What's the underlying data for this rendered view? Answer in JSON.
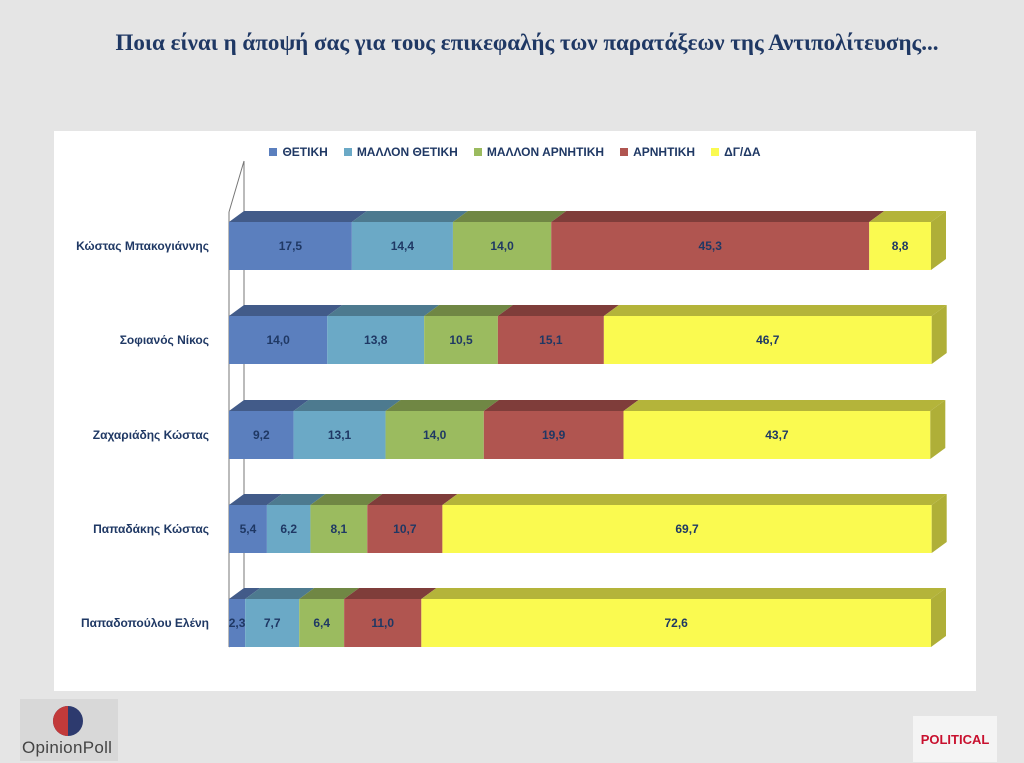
{
  "title": "Ποια είναι η άποψή σας για τους επικεφαλής των παρατάξεων της Αντιπολίτευσης...",
  "colors": {
    "pos": "#5b7fbe",
    "mpos": "#6ba9c6",
    "mneg": "#9bbb5f",
    "neg": "#b05550",
    "dk": "#fafa50",
    "label": "#1f3864"
  },
  "chart_data": {
    "type": "bar",
    "orientation": "horizontal",
    "stacked": true,
    "legend_position": "top",
    "grid": false,
    "xlim": [
      0,
      100
    ],
    "categories": [
      "Κώστας Μπακογιάννης",
      "Σοφιανός Νίκος",
      "Ζαχαριάδης Κώστας",
      "Παπαδάκης Κώστας",
      "Παπαδοπούλου Ελένη"
    ],
    "series": [
      {
        "key": "pos",
        "name": "ΘΕΤΙΚΗ",
        "values": [
          17.5,
          14.0,
          9.2,
          5.4,
          2.3
        ],
        "labels": [
          "17,5",
          "14,0",
          "9,2",
          "5,4",
          "2,3"
        ]
      },
      {
        "key": "mpos",
        "name": "ΜΑΛΛΟΝ ΘΕΤΙΚΗ",
        "values": [
          14.4,
          13.8,
          13.1,
          6.2,
          7.7
        ],
        "labels": [
          "14,4",
          "13,8",
          "13,1",
          "6,2",
          "7,7"
        ]
      },
      {
        "key": "mneg",
        "name": "ΜΑΛΛΟΝ ΑΡΝΗΤΙΚΗ",
        "values": [
          14.0,
          10.5,
          14.0,
          8.1,
          6.4
        ],
        "labels": [
          "14,0",
          "10,5",
          "14,0",
          "8,1",
          "6,4"
        ]
      },
      {
        "key": "neg",
        "name": "ΑΡΝΗΤΙΚΗ",
        "values": [
          45.3,
          15.1,
          19.9,
          10.7,
          11.0
        ],
        "labels": [
          "45,3",
          "15,1",
          "19,9",
          "10,7",
          "11,0"
        ]
      },
      {
        "key": "dk",
        "name": "ΔΓ/ΔΑ",
        "values": [
          8.8,
          46.7,
          43.7,
          69.7,
          72.6
        ],
        "labels": [
          "8,8",
          "46,7",
          "43,7",
          "69,7",
          "72,6"
        ]
      }
    ]
  },
  "logos": {
    "left": "OpinionPoll",
    "right": "POLITICAL"
  }
}
